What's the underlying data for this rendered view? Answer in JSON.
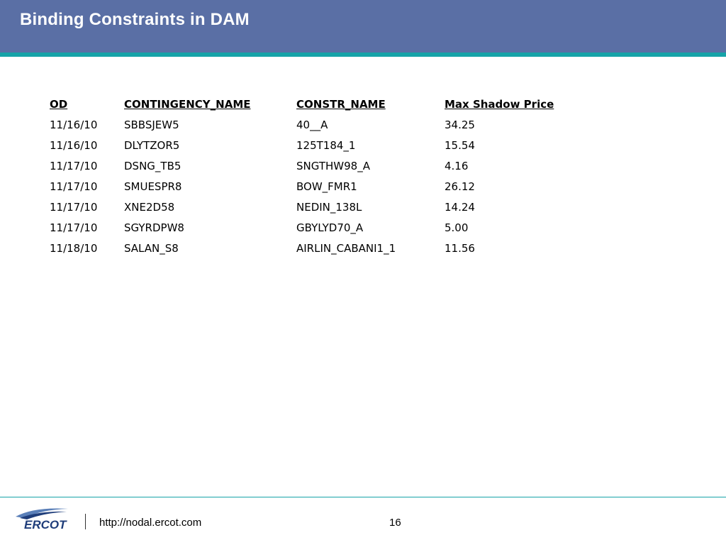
{
  "slide": {
    "title": "Binding Constraints in DAM",
    "colors": {
      "title_bar": "#5a6fa5",
      "accent_stripe": "#16a3a8",
      "logo_blue": "#1f3d7a"
    }
  },
  "table": {
    "headers": [
      "OD",
      "CONTINGENCY_NAME",
      "CONSTR_NAME",
      "Max Shadow Price"
    ],
    "rows": [
      [
        "11/16/10",
        "SBBSJEW5",
        "40__A",
        "34.25"
      ],
      [
        "11/16/10",
        "DLYTZOR5",
        "125T184_1",
        "15.54"
      ],
      [
        "11/17/10",
        "DSNG_TB5",
        "SNGTHW98_A",
        "4.16"
      ],
      [
        "11/17/10",
        "SMUESPR8",
        "BOW_FMR1",
        "26.12"
      ],
      [
        "11/17/10",
        "XNE2D58",
        "NEDIN_138L",
        "14.24"
      ],
      [
        "11/17/10",
        "SGYRDPW8",
        "GBYLYD70_A",
        "5.00"
      ],
      [
        "11/18/10",
        "SALAN_S8",
        "AIRLIN_CABANI1_1",
        "11.56"
      ]
    ]
  },
  "footer": {
    "logo_text": "ERCOT",
    "url": "http://nodal.ercot.com",
    "page_number": "16"
  }
}
